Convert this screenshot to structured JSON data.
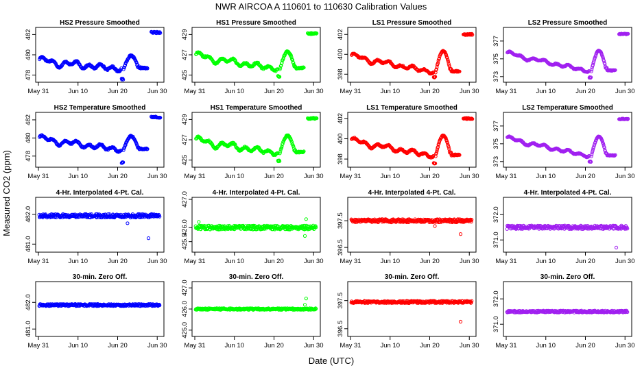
{
  "title": "NWR   AIRCOA A   110601 to 110630   Calibration Values",
  "xlabel": "Date (UTC)",
  "ylabel": "Measured CO2 (ppm)",
  "colors": {
    "HS2": "#0000ff",
    "HS1": "#00ff00",
    "LS1": "#ff0000",
    "LS2": "#a020f0"
  },
  "chart_data": [
    {
      "id": "HS2-pressure",
      "type": "scatter",
      "title": "HS2 Pressure Smoothed",
      "series": "HS2",
      "row": 0,
      "col": 0,
      "xlim": [
        0,
        31
      ],
      "ylim": [
        477.5,
        482.5
      ],
      "yticks": [
        {
          "v": 478,
          "label": "478"
        },
        {
          "v": 480,
          "label": "480"
        },
        {
          "v": 482,
          "label": "482"
        }
      ],
      "pattern": "smooth",
      "base": 480.0,
      "start": 479.4,
      "end": 478.6,
      "bump": 1.3,
      "after": 482.2,
      "low_spike": 477.6,
      "noise": 0.15,
      "xticks": [
        "May 31",
        "Jun 10",
        "Jun 20",
        "Jun 30"
      ]
    },
    {
      "id": "HS1-pressure",
      "type": "scatter",
      "title": "HS1 Pressure Smoothed",
      "series": "HS1",
      "row": 0,
      "col": 1,
      "xlim": [
        0,
        31
      ],
      "ylim": [
        424.5,
        429.5
      ],
      "yticks": [
        {
          "v": 425,
          "label": "425"
        },
        {
          "v": 427,
          "label": "427"
        },
        {
          "v": 429,
          "label": "429"
        }
      ],
      "pattern": "smooth",
      "start": 426.9,
      "end": 425.6,
      "bump": 1.7,
      "after": 429.1,
      "low_spike": 424.9,
      "noise": 0.15,
      "xticks": [
        "May 31",
        "Jun 10",
        "Jun 20",
        "Jun 30"
      ]
    },
    {
      "id": "LS1-pressure",
      "type": "scatter",
      "title": "LS1 Pressure Smoothed",
      "series": "LS1",
      "row": 0,
      "col": 2,
      "xlim": [
        0,
        31
      ],
      "ylim": [
        397.4,
        402.5
      ],
      "yticks": [
        {
          "v": 398,
          "label": "398"
        },
        {
          "v": 400,
          "label": "400"
        },
        {
          "v": 402,
          "label": "402"
        }
      ],
      "pattern": "smooth",
      "start": 399.8,
      "end": 398.2,
      "bump": 2.1,
      "after": 402.0,
      "low_spike": 397.7,
      "noise": 0.12,
      "xticks": [
        "May 31",
        "Jun 10",
        "Jun 20",
        "Jun 30"
      ]
    },
    {
      "id": "LS2-pressure",
      "type": "scatter",
      "title": "LS2 Pressure Smoothed",
      "series": "LS2",
      "row": 0,
      "col": 3,
      "xlim": [
        0,
        31
      ],
      "ylim": [
        372.6,
        378.3
      ],
      "yticks": [
        {
          "v": 373,
          "label": "373"
        },
        {
          "v": 375,
          "label": "375"
        },
        {
          "v": 377,
          "label": "377"
        }
      ],
      "pattern": "smooth",
      "start": 375.6,
      "end": 373.6,
      "bump": 2.3,
      "after": 377.8,
      "low_spike": 372.9,
      "noise": 0.1,
      "xticks": [
        "May 31",
        "Jun 10",
        "Jun 20",
        "Jun 30"
      ]
    },
    {
      "id": "HS2-temperature",
      "type": "scatter",
      "title": "HS2 Temperature Smoothed",
      "series": "HS2",
      "row": 1,
      "col": 0,
      "xlim": [
        0,
        31
      ],
      "ylim": [
        477.0,
        482.6
      ],
      "yticks": [
        {
          "v": 478,
          "label": "478"
        },
        {
          "v": 480,
          "label": "480"
        },
        {
          "v": 482,
          "label": "482"
        }
      ],
      "pattern": "smooth",
      "start": 479.9,
      "end": 478.7,
      "bump": 1.5,
      "after": 482.3,
      "low_spike": 477.3,
      "noise": 0.15,
      "xticks": [
        "May 31",
        "Jun 10",
        "Jun 20",
        "Jun 30"
      ]
    },
    {
      "id": "HS1-temperature",
      "type": "scatter",
      "title": "HS1 Temperature Smoothed",
      "series": "HS1",
      "row": 1,
      "col": 1,
      "xlim": [
        0,
        31
      ],
      "ylim": [
        424.5,
        429.5
      ],
      "yticks": [
        {
          "v": 425,
          "label": "425"
        },
        {
          "v": 427,
          "label": "427"
        },
        {
          "v": 429,
          "label": "429"
        }
      ],
      "pattern": "smooth",
      "start": 426.9,
      "end": 425.7,
      "bump": 1.7,
      "after": 429.1,
      "low_spike": 424.9,
      "noise": 0.15,
      "xticks": [
        "May 31",
        "Jun 10",
        "Jun 20",
        "Jun 30"
      ]
    },
    {
      "id": "LS1-temperature",
      "type": "scatter",
      "title": "LS1 Temperature Smoothed",
      "series": "LS1",
      "row": 1,
      "col": 2,
      "xlim": [
        0,
        31
      ],
      "ylim": [
        397.4,
        402.4
      ],
      "yticks": [
        {
          "v": 398,
          "label": "398"
        },
        {
          "v": 400,
          "label": "400"
        },
        {
          "v": 402,
          "label": "402"
        }
      ],
      "pattern": "smooth",
      "start": 399.8,
      "end": 398.3,
      "bump": 2.0,
      "after": 402.0,
      "low_spike": 397.6,
      "noise": 0.12,
      "xticks": [
        "May 31",
        "Jun 10",
        "Jun 20",
        "Jun 30"
      ]
    },
    {
      "id": "LS2-temperature",
      "type": "scatter",
      "title": "LS2 Temperature Smoothed",
      "series": "LS2",
      "row": 1,
      "col": 3,
      "xlim": [
        0,
        31
      ],
      "ylim": [
        372.6,
        378.3
      ],
      "yticks": [
        {
          "v": 373,
          "label": "373"
        },
        {
          "v": 375,
          "label": "375"
        },
        {
          "v": 377,
          "label": "377"
        }
      ],
      "pattern": "smooth",
      "start": 375.6,
      "end": 373.6,
      "bump": 2.2,
      "after": 377.8,
      "low_spike": 373.0,
      "noise": 0.1,
      "xticks": [
        "May 31",
        "Jun 10",
        "Jun 20",
        "Jun 30"
      ]
    },
    {
      "id": "HS2-interp",
      "type": "scatter",
      "title": "4-Hr. Interpolated 4-Pt. Cal.",
      "series": "HS2",
      "row": 2,
      "col": 0,
      "xlim": [
        0,
        31
      ],
      "ylim": [
        480.8,
        482.5
      ],
      "yticks": [
        {
          "v": 481,
          "label": "481.0"
        },
        {
          "v": 482,
          "label": "482.0"
        }
      ],
      "pattern": "flat",
      "level": 481.95,
      "noise": 0.06,
      "outliers": [
        [
          27.8,
          481.2
        ],
        [
          22.5,
          481.7
        ]
      ],
      "xticks": [
        "May 31",
        "Jun 10",
        "Jun 20",
        "Jun 30"
      ]
    },
    {
      "id": "HS1-interp",
      "type": "scatter",
      "title": "4-Hr. Interpolated 4-Pt. Cal.",
      "series": "HS1",
      "row": 2,
      "col": 1,
      "xlim": [
        0,
        31
      ],
      "ylim": [
        425.2,
        427.0
      ],
      "yticks": [
        {
          "v": 425.5,
          "label": "425.5"
        },
        {
          "v": 426,
          "label": "426.0"
        },
        {
          "v": 427,
          "label": "427.0"
        }
      ],
      "pattern": "flat",
      "level": 426.0,
      "noise": 0.07,
      "outliers": [
        [
          27.8,
          425.7
        ],
        [
          28.1,
          426.3
        ],
        [
          1.0,
          426.2
        ]
      ],
      "xticks": [
        "May 31",
        "Jun 10",
        "Jun 20",
        "Jun 30"
      ]
    },
    {
      "id": "LS1-interp",
      "type": "scatter",
      "title": "4-Hr. Interpolated 4-Pt. Cal.",
      "series": "LS1",
      "row": 2,
      "col": 2,
      "xlim": [
        0,
        31
      ],
      "ylim": [
        396.4,
        398.3
      ],
      "yticks": [
        {
          "v": 396.5,
          "label": "396.5"
        },
        {
          "v": 397.5,
          "label": "397.5"
        }
      ],
      "pattern": "flat",
      "level": 397.5,
      "noise": 0.06,
      "outliers": [
        [
          27.8,
          397.0
        ],
        [
          21.3,
          397.3
        ]
      ],
      "xticks": [
        "May 31",
        "Jun 10",
        "Jun 20",
        "Jun 30"
      ]
    },
    {
      "id": "LS2-interp",
      "type": "scatter",
      "title": "4-Hr. Interpolated 4-Pt. Cal.",
      "series": "LS2",
      "row": 2,
      "col": 3,
      "xlim": [
        0,
        31
      ],
      "ylim": [
        370.6,
        372.6
      ],
      "yticks": [
        {
          "v": 371,
          "label": "371.0"
        },
        {
          "v": 372,
          "label": "372.0"
        }
      ],
      "pattern": "flat",
      "level": 371.5,
      "noise": 0.07,
      "outliers": [
        [
          27.8,
          370.7
        ]
      ],
      "xticks": [
        "May 31",
        "Jun 10",
        "Jun 20",
        "Jun 30"
      ]
    },
    {
      "id": "HS2-zero",
      "type": "scatter",
      "title": "30-min. Zero Off.",
      "series": "HS2",
      "row": 3,
      "col": 0,
      "xlim": [
        0,
        31
      ],
      "ylim": [
        480.8,
        482.7
      ],
      "yticks": [
        {
          "v": 481,
          "label": "481.0"
        },
        {
          "v": 482,
          "label": "482.0"
        }
      ],
      "pattern": "flat",
      "level": 481.9,
      "noise": 0.04,
      "outliers": [],
      "xticks": [
        "May 31",
        "Jun 10",
        "Jun 20",
        "Jun 30"
      ]
    },
    {
      "id": "HS1-zero",
      "type": "scatter",
      "title": "30-min. Zero Off.",
      "series": "HS1",
      "row": 3,
      "col": 1,
      "xlim": [
        0,
        31
      ],
      "ylim": [
        424.8,
        427.2
      ],
      "yticks": [
        {
          "v": 425,
          "label": "425.0"
        },
        {
          "v": 426,
          "label": "426.0"
        },
        {
          "v": 427,
          "label": "427.0"
        }
      ],
      "pattern": "flat",
      "level": 426.0,
      "noise": 0.04,
      "outliers": [
        [
          28.1,
          426.5
        ],
        [
          27.8,
          426.2
        ]
      ],
      "xticks": [
        "May 31",
        "Jun 10",
        "Jun 20",
        "Jun 30"
      ]
    },
    {
      "id": "LS1-zero",
      "type": "scatter",
      "title": "30-min. Zero Off.",
      "series": "LS1",
      "row": 3,
      "col": 2,
      "xlim": [
        0,
        31
      ],
      "ylim": [
        396.3,
        398.1
      ],
      "yticks": [
        {
          "v": 396.5,
          "label": "396.5"
        },
        {
          "v": 397.5,
          "label": "397.5"
        }
      ],
      "pattern": "flat",
      "level": 397.45,
      "noise": 0.04,
      "outliers": [
        [
          27.8,
          396.75
        ]
      ],
      "xticks": [
        "May 31",
        "Jun 10",
        "Jun 20",
        "Jun 30"
      ]
    },
    {
      "id": "LS2-zero",
      "type": "scatter",
      "title": "30-min. Zero Off.",
      "series": "LS2",
      "row": 3,
      "col": 3,
      "xlim": [
        0,
        31
      ],
      "ylim": [
        370.6,
        372.6
      ],
      "yticks": [
        {
          "v": 371,
          "label": "371.0"
        },
        {
          "v": 372,
          "label": "372.0"
        }
      ],
      "pattern": "flat",
      "level": 371.5,
      "noise": 0.04,
      "outliers": [],
      "xticks": [
        "May 31",
        "Jun 10",
        "Jun 20",
        "Jun 30"
      ]
    }
  ]
}
